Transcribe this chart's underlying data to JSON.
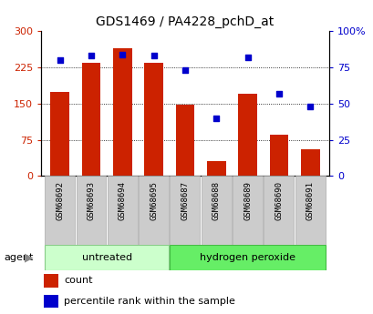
{
  "title": "GDS1469 / PA4228_pchD_at",
  "samples": [
    "GSM68692",
    "GSM68693",
    "GSM68694",
    "GSM68695",
    "GSM68687",
    "GSM68688",
    "GSM68689",
    "GSM68690",
    "GSM68691"
  ],
  "counts": [
    175,
    235,
    265,
    235,
    148,
    30,
    170,
    85,
    55
  ],
  "percentiles": [
    80,
    83,
    84,
    83,
    73,
    40,
    82,
    57,
    48
  ],
  "bar_color": "#cc2200",
  "dot_color": "#0000cc",
  "left_ylim": [
    0,
    300
  ],
  "right_ylim": [
    0,
    100
  ],
  "left_yticks": [
    0,
    75,
    150,
    225,
    300
  ],
  "right_yticks": [
    0,
    25,
    50,
    75,
    100
  ],
  "right_yticklabels": [
    "0",
    "25",
    "50",
    "75",
    "100%"
  ],
  "groups": [
    {
      "label": "untreated",
      "start": 0,
      "end": 3,
      "color": "#ccffcc",
      "edge": "#88cc88"
    },
    {
      "label": "hydrogen peroxide",
      "start": 4,
      "end": 8,
      "color": "#66ee66",
      "edge": "#44bb44"
    }
  ],
  "agent_label": "agent",
  "legend_count_label": "count",
  "legend_pct_label": "percentile rank within the sample",
  "plot_bg": "#ffffff",
  "grid_color": "#000000",
  "sample_box_color": "#cccccc",
  "sample_box_edge": "#aaaaaa"
}
